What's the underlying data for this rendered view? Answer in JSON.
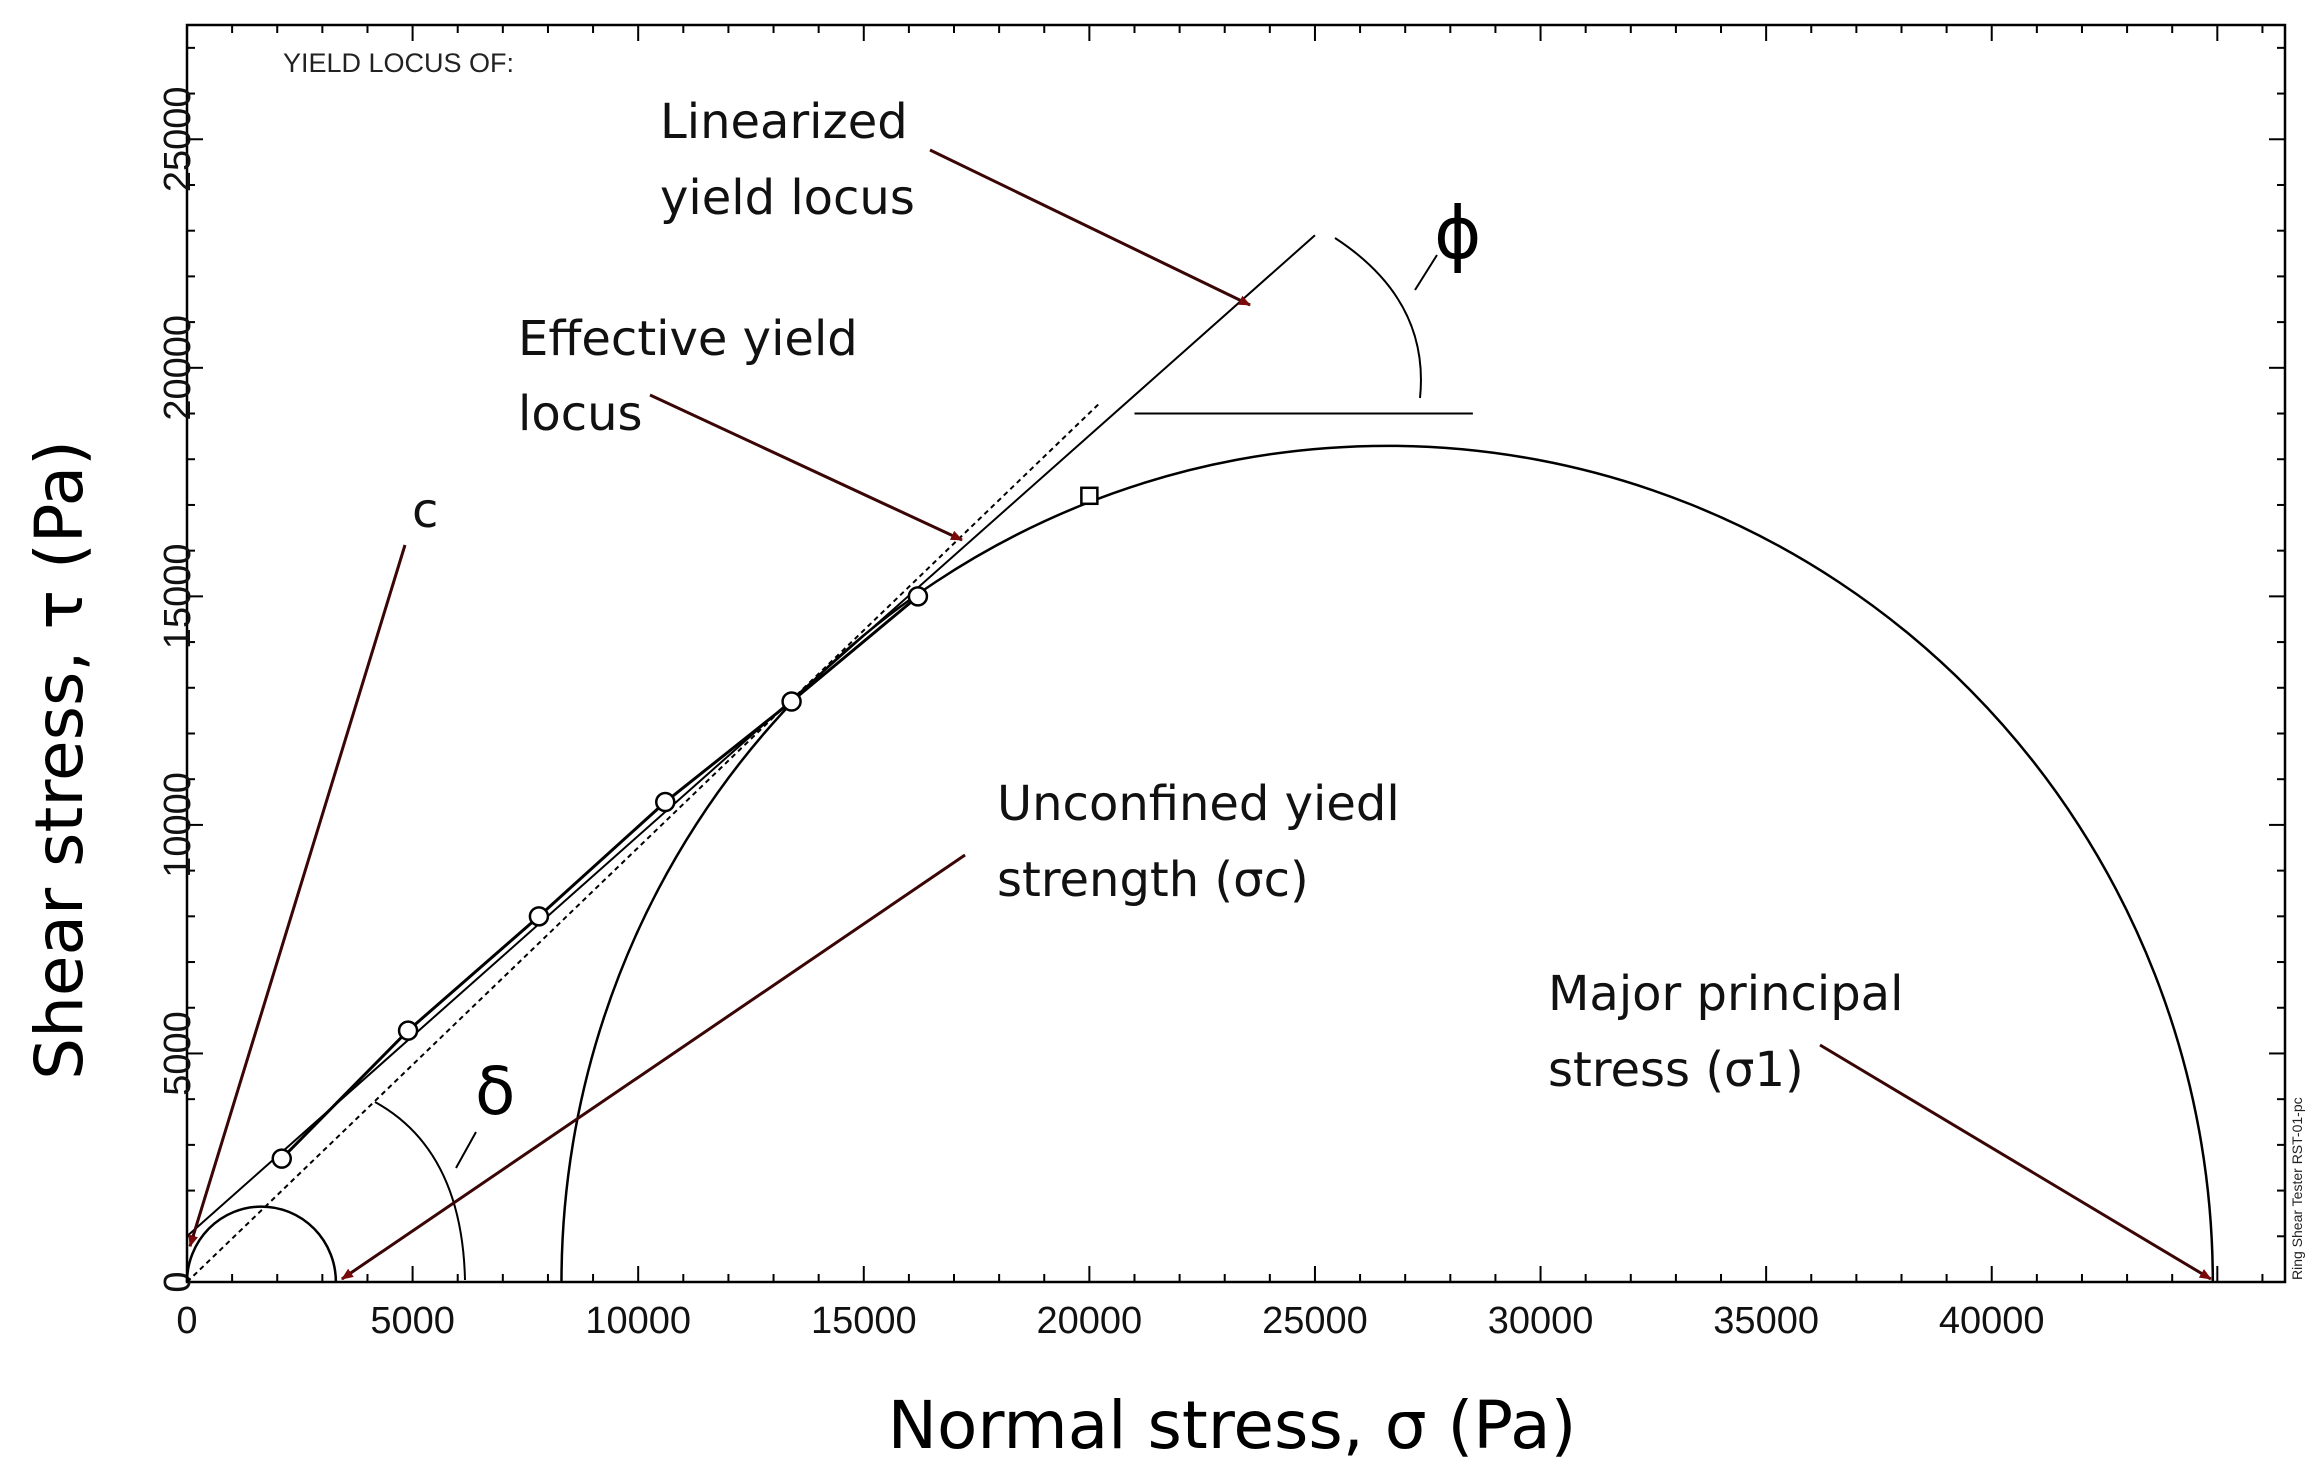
{
  "chart_data": {
    "type": "scatter",
    "title": "YIELD LOCUS OF:",
    "xlabel": "Normal stress, σ (Pa)",
    "ylabel": "Shear stress, τ (Pa)",
    "xlim": [
      0,
      46500
    ],
    "ylim": [
      0,
      27500
    ],
    "xticks": [
      0,
      5000,
      10000,
      15000,
      20000,
      25000,
      30000,
      35000,
      40000
    ],
    "yticks": [
      0,
      5000,
      10000,
      15000,
      20000,
      25000
    ],
    "grid": false,
    "yield_locus_points": {
      "x": [
        2100,
        4900,
        7800,
        10600,
        13400,
        16200
      ],
      "y": [
        2700,
        5500,
        8000,
        10500,
        12700,
        15000
      ]
    },
    "preshear_point": {
      "x": 20000,
      "y": 17200
    },
    "linearized_yield_locus": {
      "x": [
        0,
        25000
      ],
      "y": [
        1000,
        22900
      ]
    },
    "effective_yield_locus": {
      "x": [
        0,
        20200
      ],
      "y": [
        0,
        19200
      ]
    },
    "phi_reference_line": {
      "x": [
        21000,
        28500
      ],
      "y": [
        19000,
        19000
      ]
    },
    "mohr_circle_large": {
      "center": 26600,
      "radius": 18300
    },
    "mohr_circle_small": {
      "center": 1650,
      "radius": 1650
    },
    "cohesion_c": 1000,
    "unconfined_yield_strength_sigma_c": 3300,
    "major_principal_stress_sigma_1": 44900,
    "annotations": {
      "linearized": [
        "Linearized",
        "yield locus"
      ],
      "effective": [
        "Effective yield",
        "locus"
      ],
      "cohesion": "c",
      "unconfined": [
        "Unconfined yiedl",
        "strength (σc)"
      ],
      "major": [
        "Major principal",
        "stress (σ1)"
      ],
      "phi": "ϕ",
      "delta": "δ"
    },
    "side_label": "Ring Shear Tester RST-01-pc"
  }
}
